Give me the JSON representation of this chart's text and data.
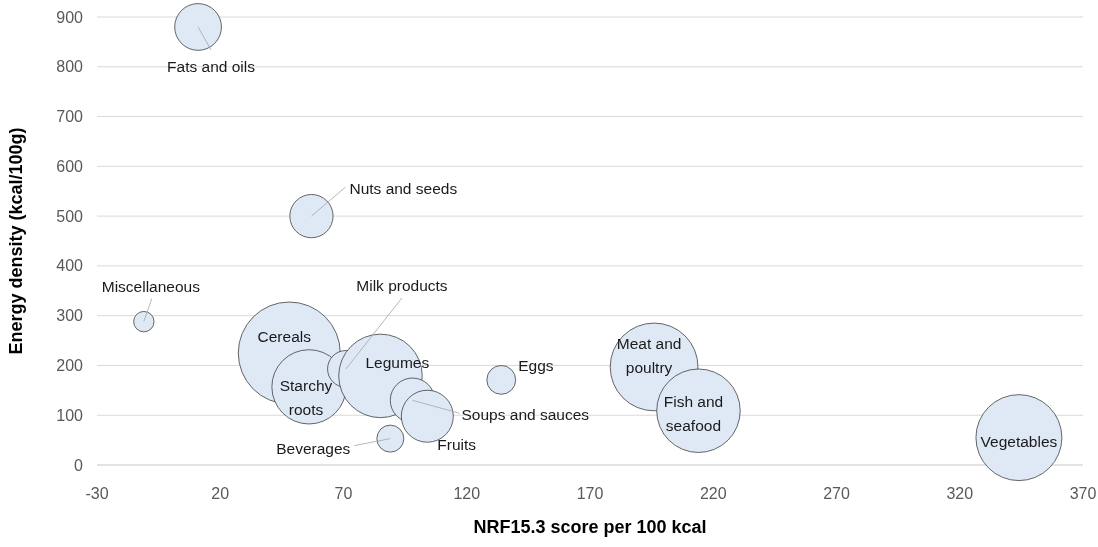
{
  "chart_data": {
    "type": "bubble",
    "xlabel": "NRF15.3 score per 100 kcal",
    "ylabel": "Energy density (kcal/100g)",
    "xlim": [
      -30,
      370
    ],
    "xticks": [
      -30,
      20,
      70,
      120,
      170,
      220,
      270,
      320,
      370
    ],
    "ylim": [
      0,
      900
    ],
    "yticks": [
      0,
      100,
      200,
      300,
      400,
      500,
      600,
      700,
      800,
      900
    ],
    "grid": "y",
    "series": [
      {
        "color": "#dee9f5",
        "x": [
          11,
          57,
          -11,
          48,
          56,
          71,
          85,
          98,
          104,
          89,
          134,
          196,
          214,
          344
        ],
        "values": [
          880,
          500,
          288,
          225,
          157,
          193,
          179,
          130,
          98,
          53,
          171,
          197,
          109,
          55
        ],
        "sizes": [
          0.21,
          0.18,
          0.04,
          1,
          0.53,
          0.13,
          0.67,
          0.19,
          0.26,
          0.07,
          0.08,
          0.74,
          0.67,
          0.71
        ]
      }
    ],
    "annotations": [
      {
        "text": "Fats and oils",
        "x": 11,
        "y": 880
      },
      {
        "text": "Nuts and seeds",
        "x": 57,
        "y": 500
      },
      {
        "text": "Miscellaneous",
        "x": -11,
        "y": 288
      },
      {
        "text": "Cereals",
        "x": 48,
        "y": 225
      },
      {
        "text": "Starchy roots",
        "x": 56,
        "y": 157
      },
      {
        "text": "Milk products",
        "x": 71,
        "y": 193
      },
      {
        "text": "Legumes",
        "x": 85,
        "y": 179
      },
      {
        "text": "Soups and sauces",
        "x": 98,
        "y": 130
      },
      {
        "text": "Fruits",
        "x": 104,
        "y": 98
      },
      {
        "text": "Beverages",
        "x": 89,
        "y": 53
      },
      {
        "text": "Eggs",
        "x": 134,
        "y": 171
      },
      {
        "text": "Meat and poultry",
        "x": 196,
        "y": 197
      },
      {
        "text": "Fish and seafood",
        "x": 214,
        "y": 109
      },
      {
        "text": "Vegetables",
        "x": 344,
        "y": 55
      }
    ]
  }
}
